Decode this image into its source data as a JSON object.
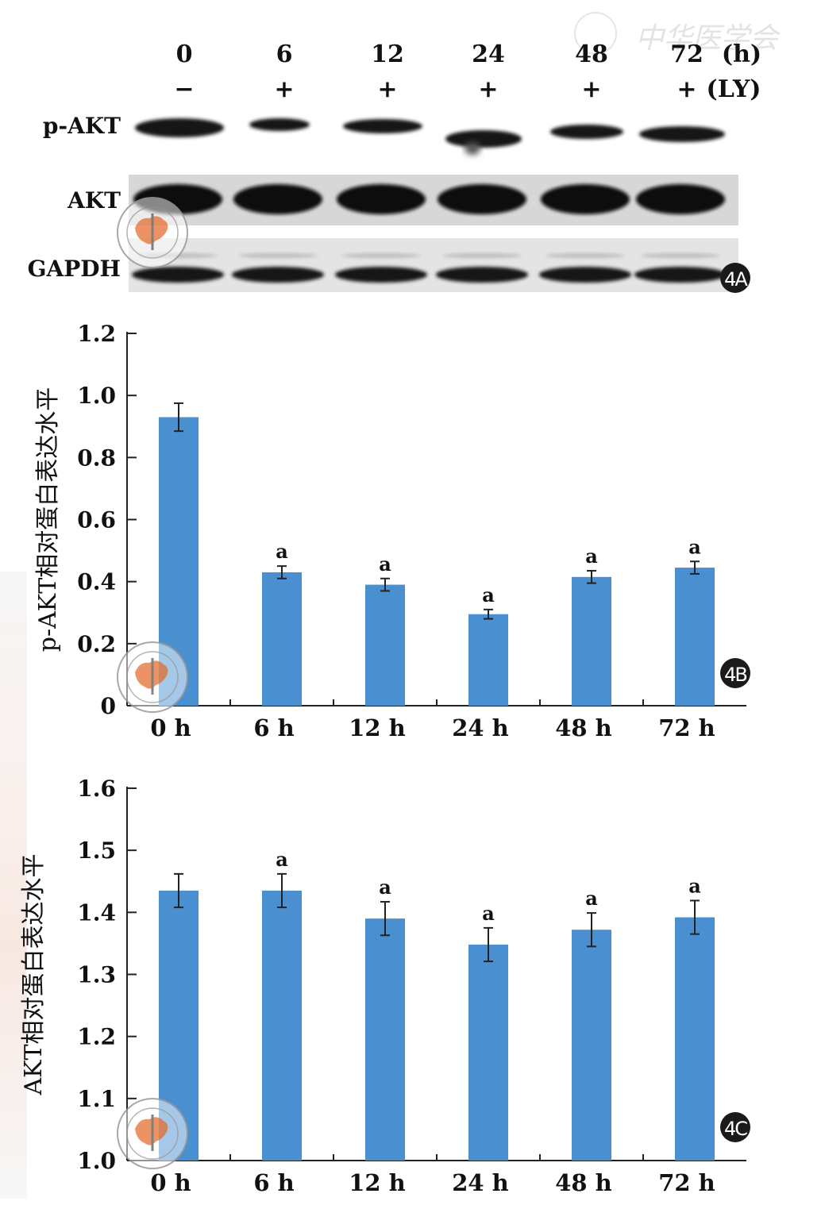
{
  "watermark": {
    "text": "中华医学会"
  },
  "blot": {
    "time_header": [
      "0",
      "6",
      "12",
      "24",
      "48",
      "72"
    ],
    "time_unit": "(h)",
    "ly_header": [
      "−",
      "+",
      "+",
      "+",
      "+",
      "+"
    ],
    "ly_unit": "(LY)",
    "rows": [
      "p-AKT",
      "AKT",
      "GAPDH"
    ],
    "panel_label": "4A"
  },
  "chart_data": [
    {
      "type": "bar",
      "panel_label": "4B",
      "categories": [
        "0 h",
        "6 h",
        "12 h",
        "24 h",
        "48 h",
        "72 h"
      ],
      "values": [
        0.93,
        0.43,
        0.39,
        0.295,
        0.415,
        0.445
      ],
      "errors": [
        0.045,
        0.02,
        0.02,
        0.015,
        0.02,
        0.02
      ],
      "annotations": [
        "",
        "a",
        "a",
        "a",
        "a",
        "a"
      ],
      "ylabel": "p-AKT相对蛋白表达水平",
      "ylim": [
        0,
        1.2
      ],
      "yticks": [
        "0",
        "0.2",
        "0.4",
        "0.6",
        "0.8",
        "1.0",
        "1.2"
      ],
      "ytick_values": [
        0,
        0.2,
        0.4,
        0.6,
        0.8,
        1.0,
        1.2
      ],
      "color": "#4a8fcf"
    },
    {
      "type": "bar",
      "panel_label": "4C",
      "categories": [
        "0 h",
        "6 h",
        "12 h",
        "24 h",
        "48 h",
        "72 h"
      ],
      "values": [
        1.435,
        1.435,
        1.39,
        1.348,
        1.372,
        1.392
      ],
      "errors": [
        0.027,
        0.027,
        0.027,
        0.027,
        0.027,
        0.027
      ],
      "annotations": [
        "",
        "a",
        "a",
        "a",
        "a",
        "a"
      ],
      "ylabel": "AKT相对蛋白表达水平",
      "ylim": [
        1.0,
        1.6
      ],
      "yticks": [
        "1.0",
        "1.1",
        "1.2",
        "1.3",
        "1.4",
        "1.5",
        "1.6"
      ],
      "ytick_values": [
        1.0,
        1.1,
        1.2,
        1.3,
        1.4,
        1.5,
        1.6
      ],
      "color": "#4a8fcf"
    }
  ]
}
